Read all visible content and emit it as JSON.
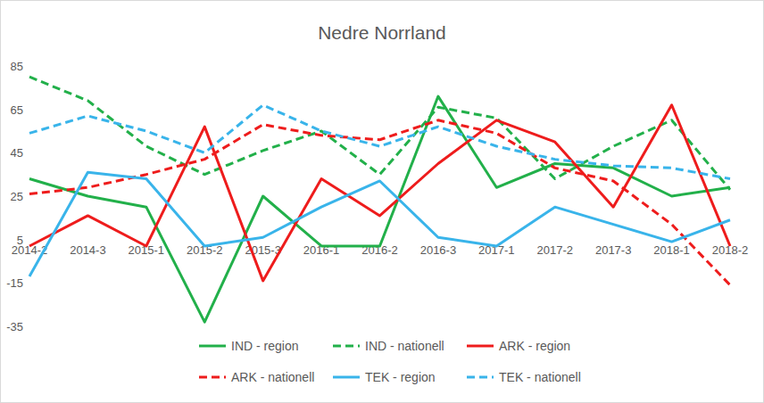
{
  "chart_data": {
    "type": "line",
    "title": "Nedre Norrland",
    "categories": [
      "2014-2",
      "2014-3",
      "2015-1",
      "2015-2",
      "2015-3",
      "2016-1",
      "2016-2",
      "2016-3",
      "2017-1",
      "2017-2",
      "2017-3",
      "2018-1",
      "2018-2"
    ],
    "series": [
      {
        "name": "IND - region",
        "color": "#22b04a",
        "line_style": "solid",
        "values": [
          33,
          25,
          20,
          -33,
          25,
          2,
          2,
          71,
          29,
          40,
          38,
          25,
          29
        ]
      },
      {
        "name": "IND - nationell",
        "color": "#22b04a",
        "line_style": "dashed",
        "values": [
          80,
          69,
          48,
          35,
          46,
          55,
          35,
          66,
          61,
          33,
          48,
          60,
          28
        ]
      },
      {
        "name": "ARK - region",
        "color": "#ee1c1c",
        "line_style": "solid",
        "values": [
          2,
          16,
          2,
          57,
          -14,
          33,
          16,
          40,
          60,
          50,
          20,
          67,
          2
        ]
      },
      {
        "name": "ARK - nationell",
        "color": "#ee1c1c",
        "line_style": "dashed",
        "values": [
          26,
          29,
          35,
          42,
          58,
          53,
          51,
          60,
          54,
          38,
          32,
          12,
          -16
        ]
      },
      {
        "name": "TEK - region",
        "color": "#39b4ea",
        "line_style": "solid",
        "values": [
          -12,
          36,
          33,
          2,
          6,
          20,
          32,
          6,
          2,
          20,
          12,
          4,
          14
        ]
      },
      {
        "name": "TEK - nationell",
        "color": "#39b4ea",
        "line_style": "dashed",
        "values": [
          54,
          62,
          55,
          45,
          67,
          55,
          48,
          57,
          48,
          42,
          39,
          38,
          33
        ]
      }
    ],
    "ylim": [
      -35,
      85
    ],
    "yticks": [
      -35,
      -15,
      5,
      25,
      45,
      65,
      85
    ],
    "grid": false,
    "legend": "bottom"
  }
}
